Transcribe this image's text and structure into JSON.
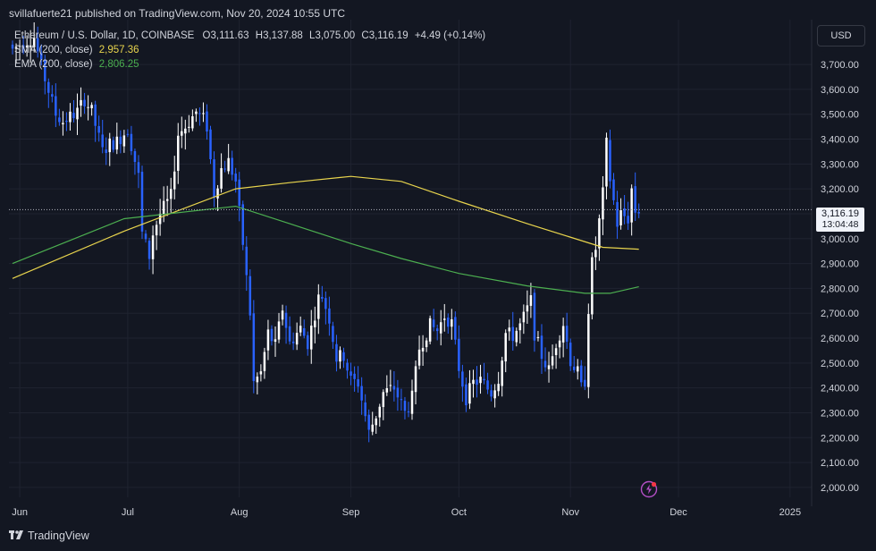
{
  "header": {
    "publisher": "svillafuerte21 published on TradingView.com, Nov 20, 2024 10:55 UTC"
  },
  "legend": {
    "symbol": "Ethereum / U.S. Dollar, 1D, COINBASE",
    "open_label": "O",
    "open": "3,111.63",
    "high_label": "H",
    "high": "3,137.88",
    "low_label": "L",
    "low": "3,075.00",
    "close_label": "C",
    "close": "3,116.19",
    "change": "+4.49 (+0.14%)",
    "sma_label": "SMA (200, close)",
    "sma_value": "2,957.36",
    "ema_label": "EMA (200, close)",
    "ema_value": "2,806.25"
  },
  "currency": "USD",
  "price_tag": {
    "price": "3,116.19",
    "countdown": "13:04:48"
  },
  "footer": {
    "brand": "TradingView"
  },
  "colors": {
    "background": "#131722",
    "up": "#ffffff",
    "down": "#2962ff",
    "sma": "#e8d44d",
    "ema": "#4caf50",
    "grid": "#1f2330",
    "text": "#d1d4dc"
  },
  "chart_data": {
    "type": "candlestick",
    "symbol": "ETH/USD",
    "interval": "1D",
    "x_ticks": [
      "Jun",
      "Jul",
      "Aug",
      "Sep",
      "Oct",
      "Nov",
      "Dec",
      "2025"
    ],
    "x_tick_dates": [
      "2024-06-01",
      "2024-07-01",
      "2024-08-01",
      "2024-09-01",
      "2024-10-01",
      "2024-11-01",
      "2024-12-01",
      "2025-01-01"
    ],
    "y_ticks": [
      2000,
      2100,
      2200,
      2300,
      2400,
      2500,
      2600,
      2700,
      2800,
      2900,
      3000,
      3100,
      3200,
      3300,
      3400,
      3500,
      3600,
      3700
    ],
    "y_tick_labels": [
      "2,000.00",
      "2,100.00",
      "2,200.00",
      "2,300.00",
      "2,400.00",
      "2,500.00",
      "2,600.00",
      "2,700.00",
      "2,800.00",
      "2,900.00",
      "3,000.00",
      "3,100.00",
      "3,200.00",
      "3,300.00",
      "3,400.00",
      "3,500.00",
      "3,600.00",
      "3,700.00"
    ],
    "ylim": [
      1960,
      3880
    ],
    "xlim": [
      "2024-05-29",
      "2025-01-07"
    ],
    "last_price": 3116.19,
    "close_anchors": [
      [
        "2024-05-30",
        3760
      ],
      [
        "2024-06-02",
        3790
      ],
      [
        "2024-06-05",
        3810
      ],
      [
        "2024-06-07",
        3690
      ],
      [
        "2024-06-11",
        3500
      ],
      [
        "2024-06-13",
        3470
      ],
      [
        "2024-06-17",
        3510
      ],
      [
        "2024-06-19",
        3560
      ],
      [
        "2024-06-21",
        3510
      ],
      [
        "2024-06-24",
        3350
      ],
      [
        "2024-06-26",
        3380
      ],
      [
        "2024-06-28",
        3390
      ],
      [
        "2024-07-01",
        3440
      ],
      [
        "2024-07-04",
        3250
      ],
      [
        "2024-07-05",
        3020
      ],
      [
        "2024-07-07",
        2930
      ],
      [
        "2024-07-08",
        3020
      ],
      [
        "2024-07-10",
        3100
      ],
      [
        "2024-07-13",
        3170
      ],
      [
        "2024-07-15",
        3420
      ],
      [
        "2024-07-17",
        3450
      ],
      [
        "2024-07-20",
        3510
      ],
      [
        "2024-07-22",
        3480
      ],
      [
        "2024-07-23",
        3450
      ],
      [
        "2024-07-25",
        3180
      ],
      [
        "2024-07-27",
        3280
      ],
      [
        "2024-07-29",
        3310
      ],
      [
        "2024-07-31",
        3230
      ],
      [
        "2024-08-02",
        2980
      ],
      [
        "2024-08-04",
        2700
      ],
      [
        "2024-08-05",
        2420
      ],
      [
        "2024-08-07",
        2460
      ],
      [
        "2024-08-09",
        2620
      ],
      [
        "2024-08-11",
        2570
      ],
      [
        "2024-08-13",
        2720
      ],
      [
        "2024-08-15",
        2580
      ],
      [
        "2024-08-18",
        2640
      ],
      [
        "2024-08-20",
        2580
      ],
      [
        "2024-08-23",
        2760
      ],
      [
        "2024-08-24",
        2770
      ],
      [
        "2024-08-26",
        2680
      ],
      [
        "2024-08-28",
        2520
      ],
      [
        "2024-08-30",
        2530
      ],
      [
        "2024-09-01",
        2430
      ],
      [
        "2024-09-03",
        2420
      ],
      [
        "2024-09-06",
        2220
      ],
      [
        "2024-09-08",
        2290
      ],
      [
        "2024-09-10",
        2380
      ],
      [
        "2024-09-13",
        2400
      ],
      [
        "2024-09-16",
        2300
      ],
      [
        "2024-09-18",
        2360
      ],
      [
        "2024-09-20",
        2560
      ],
      [
        "2024-09-23",
        2650
      ],
      [
        "2024-09-25",
        2630
      ],
      [
        "2024-09-27",
        2690
      ],
      [
        "2024-09-29",
        2660
      ],
      [
        "2024-10-01",
        2480
      ],
      [
        "2024-10-03",
        2360
      ],
      [
        "2024-10-05",
        2420
      ],
      [
        "2024-10-07",
        2430
      ],
      [
        "2024-10-10",
        2380
      ],
      [
        "2024-10-12",
        2440
      ],
      [
        "2024-10-14",
        2620
      ],
      [
        "2024-10-16",
        2610
      ],
      [
        "2024-10-18",
        2650
      ],
      [
        "2024-10-21",
        2750
      ],
      [
        "2024-10-22",
        2620
      ],
      [
        "2024-10-24",
        2530
      ],
      [
        "2024-10-26",
        2470
      ],
      [
        "2024-10-28",
        2580
      ],
      [
        "2024-10-30",
        2660
      ],
      [
        "2024-11-01",
        2510
      ],
      [
        "2024-11-03",
        2460
      ],
      [
        "2024-11-04",
        2400
      ],
      [
        "2024-11-05",
        2430
      ],
      [
        "2024-11-06",
        2720
      ],
      [
        "2024-11-07",
        2900
      ],
      [
        "2024-11-08",
        2960
      ],
      [
        "2024-11-10",
        3180
      ],
      [
        "2024-11-11",
        3380
      ],
      [
        "2024-11-12",
        3240
      ],
      [
        "2024-11-14",
        3060
      ],
      [
        "2024-11-15",
        3100
      ],
      [
        "2024-11-17",
        3080
      ],
      [
        "2024-11-18",
        3200
      ],
      [
        "2024-11-19",
        3110
      ],
      [
        "2024-11-20",
        3116.19
      ]
    ],
    "series": [
      {
        "name": "SMA (200, close)",
        "color": "#e8d44d",
        "points": [
          [
            "2024-05-30",
            2840
          ],
          [
            "2024-06-30",
            3030
          ],
          [
            "2024-07-31",
            3200
          ],
          [
            "2024-08-15",
            3225
          ],
          [
            "2024-09-01",
            3250
          ],
          [
            "2024-09-15",
            3230
          ],
          [
            "2024-10-01",
            3150
          ],
          [
            "2024-10-20",
            3060
          ],
          [
            "2024-11-10",
            2965
          ],
          [
            "2024-11-20",
            2957.36
          ]
        ]
      },
      {
        "name": "EMA (200, close)",
        "color": "#4caf50",
        "points": [
          [
            "2024-05-30",
            2900
          ],
          [
            "2024-06-30",
            3080
          ],
          [
            "2024-07-31",
            3130
          ],
          [
            "2024-08-15",
            3060
          ],
          [
            "2024-09-01",
            2980
          ],
          [
            "2024-09-15",
            2920
          ],
          [
            "2024-10-01",
            2860
          ],
          [
            "2024-10-20",
            2810
          ],
          [
            "2024-11-05",
            2780
          ],
          [
            "2024-11-12",
            2780
          ],
          [
            "2024-11-20",
            2806.25
          ]
        ]
      }
    ]
  }
}
